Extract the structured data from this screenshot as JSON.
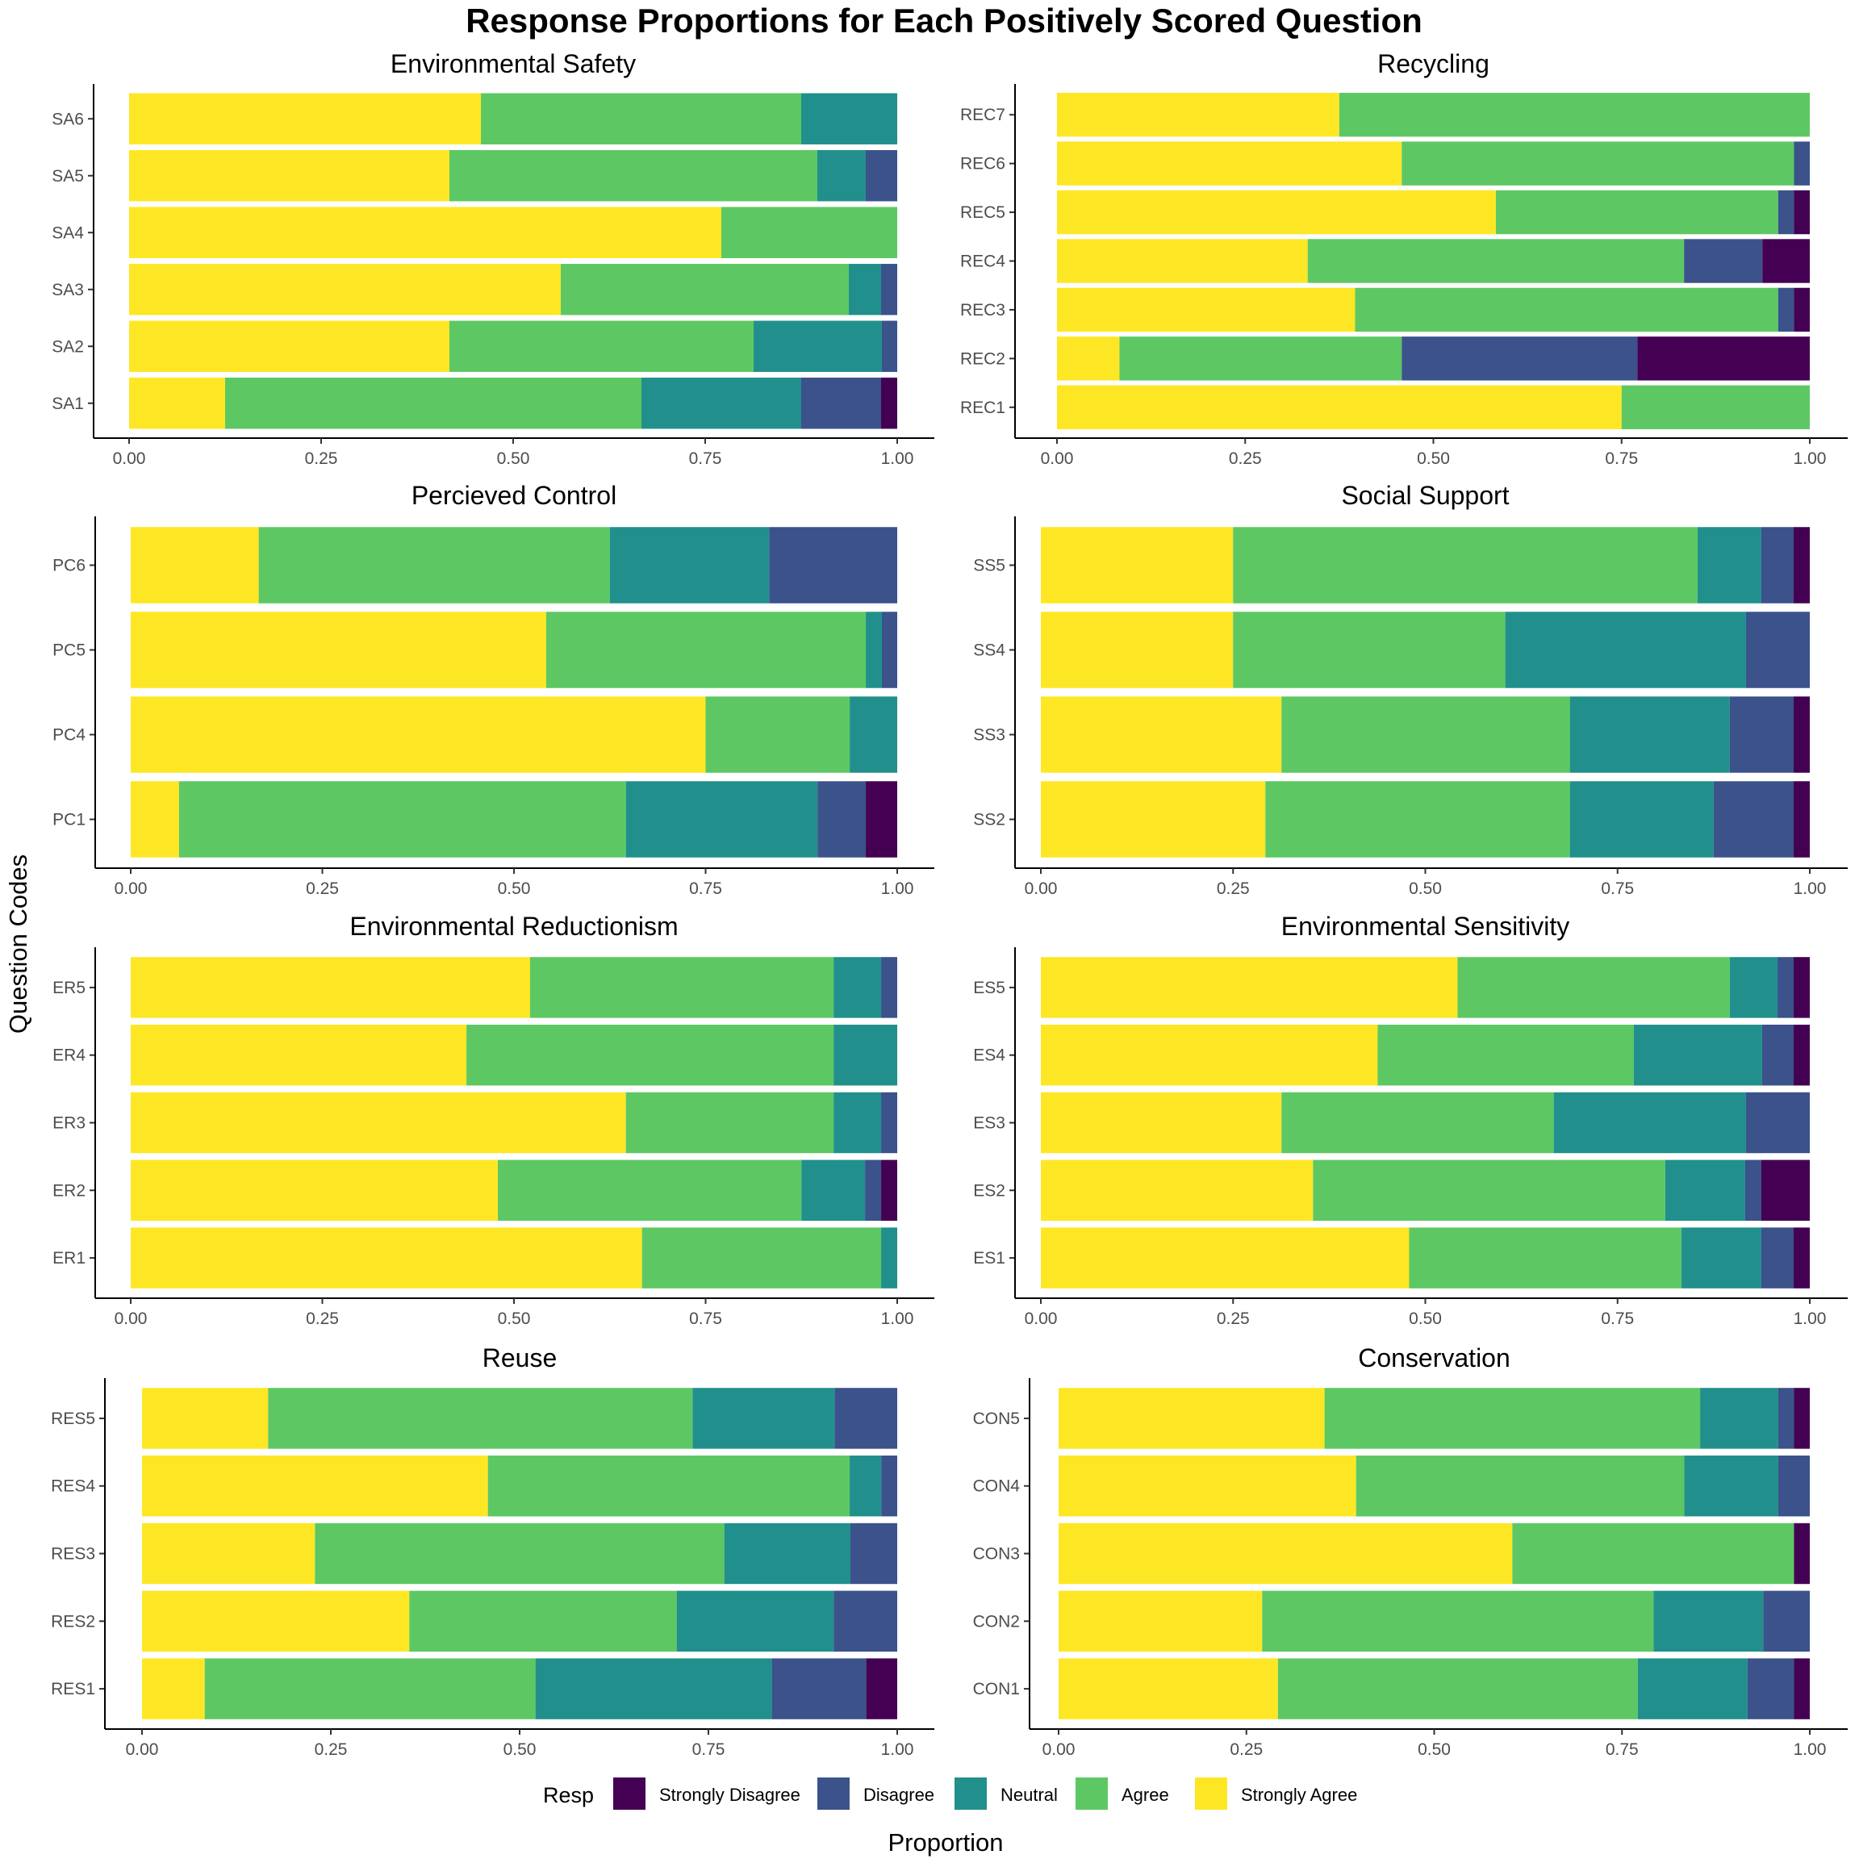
{
  "title": "Response Proportions for Each Positively Scored Question",
  "chart_data": {
    "type": "bar",
    "orientation": "horizontal",
    "stacked": true,
    "xlabel": "Proportion",
    "ylabel": "Question Codes",
    "xlim": [
      0,
      1
    ],
    "x_ticks": [
      "0.00",
      "0.25",
      "0.50",
      "0.75",
      "1.00"
    ],
    "grid": false,
    "legend": {
      "title": "Resp",
      "position": "bottom",
      "items": [
        {
          "label": "Strongly Disagree",
          "color": "#440154"
        },
        {
          "label": "Disagree",
          "color": "#3b528b"
        },
        {
          "label": "Neutral",
          "color": "#21908c"
        },
        {
          "label": "Agree",
          "color": "#5dc863"
        },
        {
          "label": "Strongly Agree",
          "color": "#fde725"
        }
      ]
    },
    "stack_order_left_to_right": [
      "Strongly Agree",
      "Agree",
      "Neutral",
      "Disagree",
      "Strongly Disagree"
    ],
    "panels": [
      {
        "title": "Environmental Safety",
        "categories": [
          "SA6",
          "SA5",
          "SA4",
          "SA3",
          "SA2",
          "SA1"
        ],
        "series": [
          {
            "name": "Strongly Agree",
            "values": [
              0.458,
              0.417,
              0.771,
              0.562,
              0.417,
              0.125
            ]
          },
          {
            "name": "Agree",
            "values": [
              0.417,
              0.479,
              0.229,
              0.375,
              0.396,
              0.542
            ]
          },
          {
            "name": "Neutral",
            "values": [
              0.125,
              0.063,
              0.0,
              0.042,
              0.167,
              0.208
            ]
          },
          {
            "name": "Disagree",
            "values": [
              0.0,
              0.041,
              0.0,
              0.021,
              0.02,
              0.104
            ]
          },
          {
            "name": "Strongly Disagree",
            "values": [
              0.0,
              0.0,
              0.0,
              0.0,
              0.0,
              0.021
            ]
          }
        ]
      },
      {
        "title": "Recycling",
        "categories": [
          "REC7",
          "REC6",
          "REC5",
          "REC4",
          "REC3",
          "REC2",
          "REC1"
        ],
        "series": [
          {
            "name": "Strongly Agree",
            "values": [
              0.375,
              0.458,
              0.583,
              0.333,
              0.396,
              0.083,
              0.75
            ]
          },
          {
            "name": "Agree",
            "values": [
              0.625,
              0.521,
              0.375,
              0.5,
              0.562,
              0.375,
              0.25
            ]
          },
          {
            "name": "Neutral",
            "values": [
              0.0,
              0.0,
              0.0,
              0.0,
              0.0,
              0.0,
              0.0
            ]
          },
          {
            "name": "Disagree",
            "values": [
              0.0,
              0.021,
              0.021,
              0.104,
              0.021,
              0.313,
              0.0
            ]
          },
          {
            "name": "Strongly Disagree",
            "values": [
              0.0,
              0.0,
              0.021,
              0.063,
              0.021,
              0.229,
              0.0
            ]
          }
        ]
      },
      {
        "title": "Percieved Control",
        "categories": [
          "PC6",
          "PC5",
          "PC4",
          "PC1"
        ],
        "series": [
          {
            "name": "Strongly Agree",
            "values": [
              0.167,
              0.542,
              0.75,
              0.063
            ]
          },
          {
            "name": "Agree",
            "values": [
              0.458,
              0.417,
              0.188,
              0.583
            ]
          },
          {
            "name": "Neutral",
            "values": [
              0.208,
              0.021,
              0.062,
              0.25
            ]
          },
          {
            "name": "Disagree",
            "values": [
              0.167,
              0.02,
              0.0,
              0.063
            ]
          },
          {
            "name": "Strongly Disagree",
            "values": [
              0.0,
              0.0,
              0.0,
              0.041
            ]
          }
        ]
      },
      {
        "title": "Social Support",
        "categories": [
          "SS5",
          "SS4",
          "SS3",
          "SS2"
        ],
        "series": [
          {
            "name": "Strongly Agree",
            "values": [
              0.25,
              0.25,
              0.313,
              0.292
            ]
          },
          {
            "name": "Agree",
            "values": [
              0.604,
              0.354,
              0.375,
              0.396
            ]
          },
          {
            "name": "Neutral",
            "values": [
              0.083,
              0.313,
              0.208,
              0.187
            ]
          },
          {
            "name": "Disagree",
            "values": [
              0.042,
              0.083,
              0.083,
              0.104
            ]
          },
          {
            "name": "Strongly Disagree",
            "values": [
              0.021,
              0.0,
              0.021,
              0.021
            ]
          }
        ]
      },
      {
        "title": "Environmental Reductionism",
        "categories": [
          "ER5",
          "ER4",
          "ER3",
          "ER2",
          "ER1"
        ],
        "series": [
          {
            "name": "Strongly Agree",
            "values": [
              0.521,
              0.438,
              0.646,
              0.479,
              0.667
            ]
          },
          {
            "name": "Agree",
            "values": [
              0.396,
              0.479,
              0.271,
              0.396,
              0.312
            ]
          },
          {
            "name": "Neutral",
            "values": [
              0.062,
              0.083,
              0.062,
              0.083,
              0.021
            ]
          },
          {
            "name": "Disagree",
            "values": [
              0.021,
              0.0,
              0.021,
              0.021,
              0.0
            ]
          },
          {
            "name": "Strongly Disagree",
            "values": [
              0.0,
              0.0,
              0.0,
              0.021,
              0.0
            ]
          }
        ]
      },
      {
        "title": "Environmental Sensitivity",
        "categories": [
          "ES5",
          "ES4",
          "ES3",
          "ES2",
          "ES1"
        ],
        "series": [
          {
            "name": "Strongly Agree",
            "values": [
              0.542,
              0.438,
              0.313,
              0.354,
              0.479
            ]
          },
          {
            "name": "Agree",
            "values": [
              0.354,
              0.333,
              0.354,
              0.458,
              0.354
            ]
          },
          {
            "name": "Neutral",
            "values": [
              0.062,
              0.167,
              0.25,
              0.104,
              0.104
            ]
          },
          {
            "name": "Disagree",
            "values": [
              0.021,
              0.041,
              0.083,
              0.021,
              0.042
            ]
          },
          {
            "name": "Strongly Disagree",
            "values": [
              0.021,
              0.021,
              0.0,
              0.063,
              0.021
            ]
          }
        ]
      },
      {
        "title": "Reuse",
        "categories": [
          "RES5",
          "RES4",
          "RES3",
          "RES2",
          "RES1"
        ],
        "series": [
          {
            "name": "Strongly Agree",
            "values": [
              0.167,
              0.458,
              0.229,
              0.354,
              0.083
            ]
          },
          {
            "name": "Agree",
            "values": [
              0.562,
              0.479,
              0.542,
              0.354,
              0.438
            ]
          },
          {
            "name": "Neutral",
            "values": [
              0.188,
              0.042,
              0.167,
              0.208,
              0.313
            ]
          },
          {
            "name": "Disagree",
            "values": [
              0.083,
              0.021,
              0.062,
              0.084,
              0.125
            ]
          },
          {
            "name": "Strongly Disagree",
            "values": [
              0.0,
              0.0,
              0.0,
              0.0,
              0.041
            ]
          }
        ]
      },
      {
        "title": "Conservation",
        "categories": [
          "CON5",
          "CON4",
          "CON3",
          "CON2",
          "CON1"
        ],
        "series": [
          {
            "name": "Strongly Agree",
            "values": [
              0.354,
              0.396,
              0.604,
              0.271,
              0.292
            ]
          },
          {
            "name": "Agree",
            "values": [
              0.5,
              0.437,
              0.375,
              0.521,
              0.479
            ]
          },
          {
            "name": "Neutral",
            "values": [
              0.104,
              0.125,
              0.0,
              0.146,
              0.146
            ]
          },
          {
            "name": "Disagree",
            "values": [
              0.021,
              0.042,
              0.0,
              0.062,
              0.062
            ]
          },
          {
            "name": "Strongly Disagree",
            "values": [
              0.021,
              0.0,
              0.021,
              0.0,
              0.021
            ]
          }
        ]
      }
    ]
  }
}
